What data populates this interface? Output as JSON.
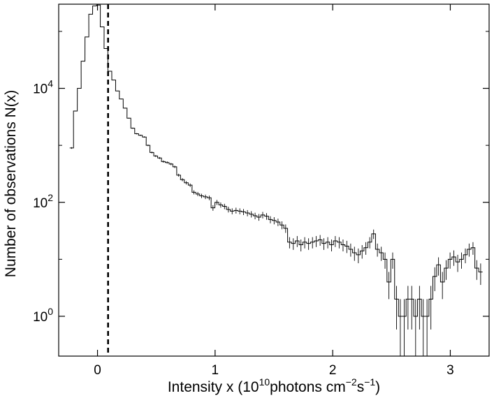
{
  "chart_data": {
    "type": "step",
    "xlabel_parts": [
      "Intensity x (10",
      "10",
      "photons cm",
      "−2",
      "s",
      "−1",
      ")"
    ],
    "ylabel": "Number of observations N(x)",
    "y_scale": "log",
    "xlim": [
      -0.33,
      3.33
    ],
    "ylim": [
      0.2,
      300000
    ],
    "x_ticks": [
      0,
      1,
      2,
      3
    ],
    "x_tick_labels": [
      "0",
      "1",
      "2",
      "3"
    ],
    "y_ticks": [
      1,
      100,
      10000
    ],
    "y_tick_labels": [
      {
        "base": "10",
        "exp": "0"
      },
      {
        "base": "10",
        "exp": "2"
      },
      {
        "base": "10",
        "exp": "4"
      }
    ],
    "threshold_line": {
      "x": 0.09,
      "style": "dashed"
    },
    "bin_width": 0.0325,
    "histogram": {
      "x": [
        -0.22,
        -0.188,
        -0.155,
        -0.123,
        -0.09,
        -0.058,
        -0.025,
        0.008,
        0.04,
        0.072,
        0.105,
        0.138,
        0.17,
        0.202,
        0.235,
        0.267,
        0.3,
        0.333,
        0.365,
        0.398,
        0.43,
        0.462,
        0.495,
        0.528,
        0.56,
        0.592,
        0.625,
        0.657,
        0.69,
        0.722,
        0.755,
        0.788,
        0.82,
        0.853,
        0.885,
        0.918,
        0.95,
        0.982,
        1.015,
        1.048,
        1.08,
        1.113,
        1.145,
        1.178,
        1.21,
        1.242,
        1.275,
        1.308,
        1.34,
        1.372,
        1.405,
        1.438,
        1.47,
        1.502,
        1.535,
        1.568,
        1.6,
        1.633,
        1.665,
        1.698,
        1.73,
        1.762,
        1.795,
        1.828,
        1.86,
        1.893,
        1.925,
        1.958,
        1.99,
        2.022,
        2.055,
        2.088,
        2.12,
        2.153,
        2.185,
        2.218,
        2.25,
        2.282,
        2.315,
        2.348,
        2.38,
        2.413,
        2.445,
        2.478,
        2.51,
        2.543,
        2.575,
        2.608,
        2.64,
        2.672,
        2.705,
        2.738,
        2.77,
        2.802,
        2.835,
        2.868,
        2.9,
        2.933,
        2.965,
        2.998,
        3.03,
        3.063,
        3.095,
        3.128,
        3.16,
        3.193,
        3.225,
        3.258
      ],
      "counts": [
        900,
        4000,
        10000,
        30000,
        80000,
        200000,
        280000,
        290000,
        120000,
        50000,
        20000,
        14000,
        9000,
        6500,
        4500,
        3000,
        2000,
        1600,
        1500,
        1400,
        1000,
        750,
        650,
        600,
        520,
        500,
        470,
        420,
        300,
        250,
        220,
        200,
        150,
        140,
        130,
        125,
        120,
        80,
        100,
        90,
        85,
        75,
        70,
        72,
        70,
        68,
        65,
        62,
        58,
        55,
        60,
        57,
        50,
        48,
        45,
        40,
        35,
        20,
        19,
        21,
        18,
        20,
        19,
        20,
        21,
        22,
        19,
        20,
        18,
        21,
        20,
        18,
        17,
        15,
        13,
        12,
        14,
        16,
        20,
        28,
        15,
        13,
        10,
        4,
        10,
        2,
        1,
        1,
        2,
        2,
        1,
        2,
        1,
        1,
        2,
        5,
        8,
        4,
        7,
        10,
        11,
        9,
        10,
        12,
        15,
        16,
        7,
        6
      ]
    }
  }
}
